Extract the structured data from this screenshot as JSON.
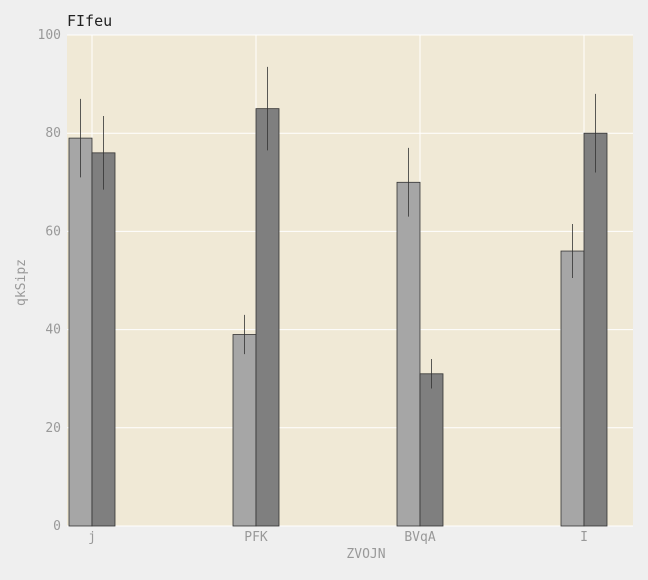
{
  "chart_data": {
    "type": "bar",
    "title": "FIfeu",
    "xlabel": "ZVOJN",
    "ylabel": "qkSipz",
    "categories": [
      "j",
      "PFK",
      "BVqA",
      "I"
    ],
    "series": [
      {
        "values": [
          79,
          39,
          70,
          56
        ],
        "errors": [
          8,
          4,
          7,
          5.5
        ],
        "color": "#a6a6a6"
      },
      {
        "values": [
          76,
          85,
          31,
          80
        ],
        "errors": [
          7.5,
          8.5,
          3,
          8
        ],
        "color": "#7f7f7f"
      }
    ],
    "ylim": [
      0,
      100
    ],
    "yticks": [
      0,
      20,
      40,
      60,
      80,
      100
    ],
    "grid": true,
    "colors": {
      "background": "#efefef",
      "plot_background": "#f0e9d6",
      "grid": "#ffffff",
      "bar_edge": "#333333",
      "error_bar": "#333333"
    }
  }
}
